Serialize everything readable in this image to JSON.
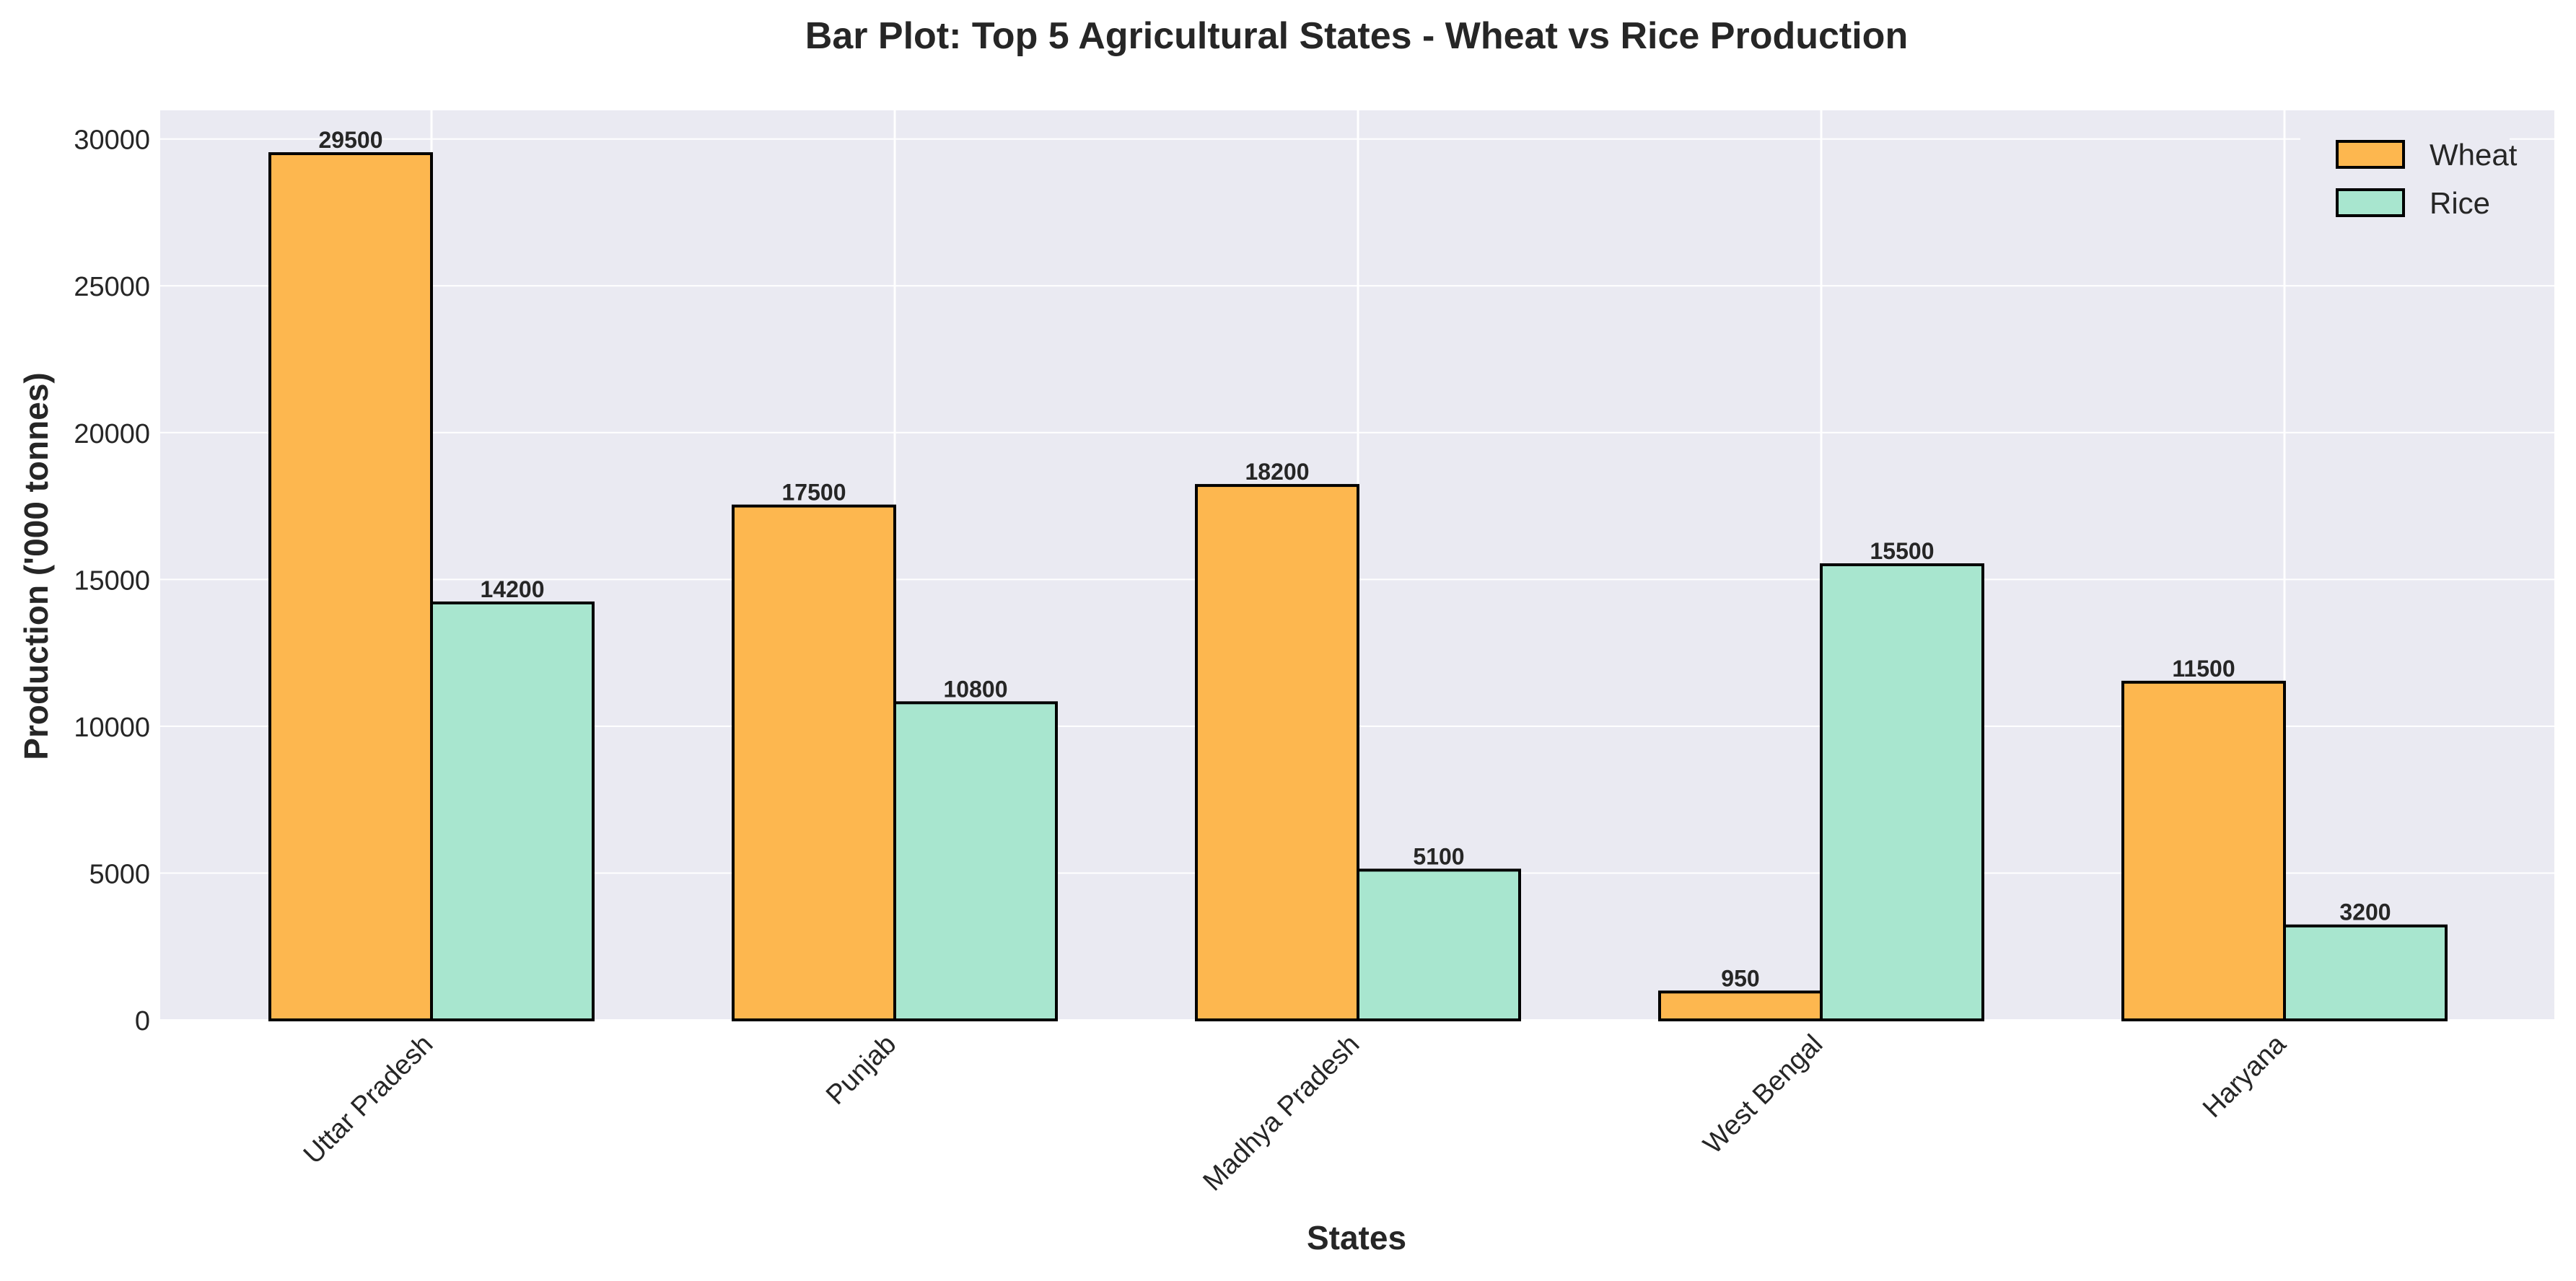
{
  "chart_data": {
    "type": "bar",
    "title": "Bar Plot: Top 5 Agricultural States - Wheat vs Rice Production",
    "xlabel": "States",
    "ylabel": "Production ('000 tonnes)",
    "categories": [
      "Uttar Pradesh",
      "Punjab",
      "Madhya Pradesh",
      "West Bengal",
      "Haryana"
    ],
    "series": [
      {
        "name": "Wheat",
        "values": [
          29500,
          17500,
          18200,
          950,
          11500
        ],
        "color": "#FDB74F"
      },
      {
        "name": "Rice",
        "values": [
          14200,
          10800,
          5100,
          15500,
          3200
        ],
        "color": "#A8E6CF"
      }
    ],
    "ylim": [
      0,
      30975
    ],
    "yticks": [
      0,
      5000,
      10000,
      15000,
      20000,
      25000,
      30000
    ],
    "grid": true,
    "legend_position": "top-right",
    "data_labels": true,
    "colors": {
      "plot_background": "#EAEAF2",
      "grid": "#FFFFFF",
      "bar_edge": "#000000",
      "text": "#262626"
    }
  }
}
